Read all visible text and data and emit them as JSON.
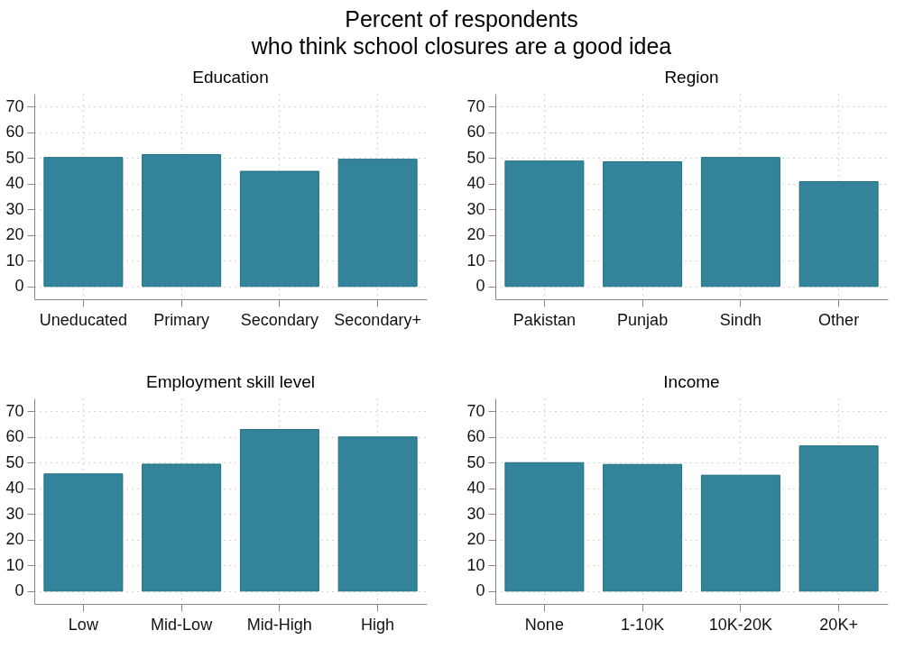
{
  "chart_data": [
    {
      "type": "bar",
      "title": "Education",
      "annotations": [
        "Percent of respondents\nwho think school closures are a good idea"
      ],
      "categories": [
        "Uneducated",
        "Primary",
        "Secondary",
        "Secondary+"
      ],
      "values": [
        50.2,
        51.3,
        44.8,
        49.5
      ],
      "color": "#33849a",
      "ylim": [
        -5,
        75
      ],
      "yticks": [
        0,
        10,
        20,
        30,
        40,
        50,
        60,
        70
      ],
      "grid": true
    },
    {
      "type": "bar",
      "title": "Region",
      "categories": [
        "Pakistan",
        "Punjab",
        "Sindh",
        "Other"
      ],
      "values": [
        48.8,
        48.5,
        50.2,
        40.8
      ],
      "color": "#33849a",
      "ylim": [
        -5,
        75
      ],
      "yticks": [
        0,
        10,
        20,
        30,
        40,
        50,
        60,
        70
      ],
      "grid": true
    },
    {
      "type": "bar",
      "title": "Employment skill level",
      "categories": [
        "Low",
        "Mid-Low",
        "Mid-High",
        "High"
      ],
      "values": [
        45.6,
        49.4,
        62.9,
        60
      ],
      "color": "#33849a",
      "ylim": [
        -5,
        75
      ],
      "yticks": [
        0,
        10,
        20,
        30,
        40,
        50,
        60,
        70
      ],
      "grid": true
    },
    {
      "type": "bar",
      "title": "Income",
      "categories": [
        "None",
        "1-10K",
        "10K-20K",
        "20K+"
      ],
      "values": [
        50,
        49.3,
        45.1,
        56.5
      ],
      "color": "#33849a",
      "ylim": [
        -5,
        75
      ],
      "yticks": [
        0,
        10,
        20,
        30,
        40,
        50,
        60,
        70
      ],
      "grid": true
    }
  ]
}
